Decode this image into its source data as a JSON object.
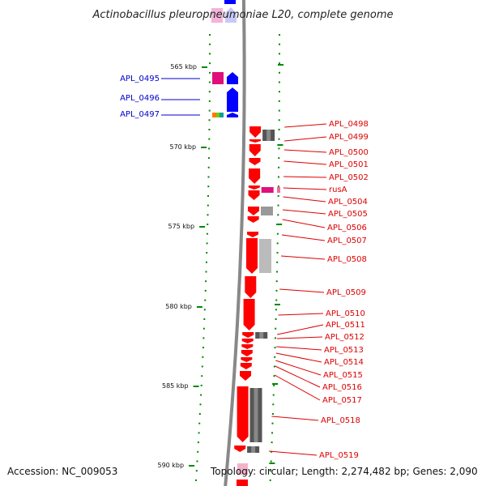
{
  "title": "Actinobacillus pleuropneumoniae L20, complete genome",
  "accession_text": "Accession: NC_009053",
  "topology_text": "Topology: circular; Length: 2,274,482 bp; Genes: 2,090",
  "kbp_labels": [
    "565 kbp",
    "570 kbp",
    "575 kbp",
    "580 kbp",
    "585 kbp",
    "590 kbp"
  ],
  "genes_reverse": [
    {
      "name": "APL_0495",
      "start_kbp": 565.4,
      "end_kbp": 566.2
    },
    {
      "name": "APL_0496",
      "start_kbp": 566.3,
      "end_kbp": 567.9
    },
    {
      "name": "APL_0497",
      "start_kbp": 567.9,
      "end_kbp": 568.3
    }
  ],
  "genes_forward": [
    "APL_0498",
    "APL_0499",
    "APL_0500",
    "APL_0501",
    "APL_0502",
    "rusA",
    "APL_0504",
    "APL_0505",
    "APL_0506",
    "APL_0507",
    "APL_0508",
    "APL_0509",
    "APL_0510",
    "APL_0511",
    "APL_0512",
    "APL_0513",
    "APL_0514",
    "APL_0515",
    "APL_0516",
    "APL_0517",
    "APL_0518",
    "APL_0519"
  ],
  "colors": {
    "forward_gene": "#ff0000",
    "reverse_gene": "#0000ff",
    "forward_label": "#dd0000",
    "reverse_label": "#0000cc",
    "backbone": "#888888",
    "tick": "#008800",
    "cog_dark": "#555555",
    "cog_light": "#bbbbbb",
    "cog_magenta": "#e0107a"
  }
}
